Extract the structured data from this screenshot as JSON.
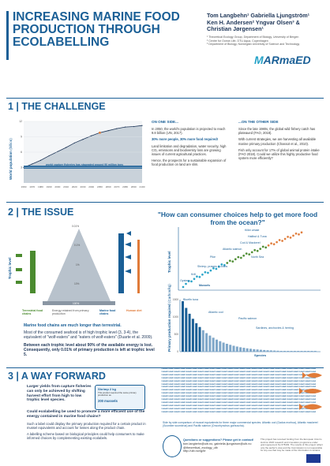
{
  "header": {
    "title_lines": [
      "INCREASING MARINE FOOD",
      "PRODUCTION THROUGH",
      "ECOLABELLING"
    ],
    "authors": [
      "Tom Langbehn",
      "Gabriella Ljungström",
      "Ken H. Andersen",
      "Yngvar Olsen",
      "Christian Jørgensen"
    ],
    "authors_line1": "Tom Langbehn¹ Gabriella Ljungström¹",
    "authors_line2": "Ken H. Andersen² Yngvar Olsen³ &",
    "authors_line3": "Christian Jørgensen¹",
    "affil1": "¹ Theoretical Ecology Group, Department of Biology, University of Bergen",
    "affil2": "² Centre for Ocean Life, DTU Aqua, Copenhagen",
    "affil3": "³ Department of Biology, Norwegian University of Science and Technology",
    "logo_a": "M",
    "logo_b": "ARmaED"
  },
  "section1": {
    "title": "1 | THE CHALLENGE",
    "chart_ylabel": "World population",
    "chart_yunit": "(billion)",
    "chart_note": "world capture fisheries has stagnated around 90 million tons",
    "left_head": "ON ONE SIDE...",
    "right_head": "...ON THE OTHER SIDE",
    "left_paras": [
      "In 2050, the world's population is projected to reach 9.8 billion (UN, 2017).",
      "30% more people, 30% more food required!",
      "Land limitation and degradation, water security, high CO₂ emissions and biodiversity loss are growing issues of current agricultural practices.",
      "Hence, the prospects for a sustainable expansion of food production on land are slim."
    ],
    "right_paras": [
      "Since the late 1980s, the global wild fishery catch has plateaued (FAO, 2018).",
      "With current strategies, we are harvesting all available marine primary production (Chassot et al., 2010).",
      "Fish only account for 17% of global animal protein intake (FAO 2018). Could we utilize this highly productive food system more efficiently?"
    ]
  },
  "chart_data": {
    "type": "area",
    "x": [
      1960,
      1970,
      1980,
      1990,
      2000,
      2010,
      2020,
      2030,
      2040,
      2050,
      2060,
      2070,
      2080,
      2090,
      2100
    ],
    "values": [
      3.0,
      3.7,
      4.4,
      5.3,
      6.1,
      6.9,
      7.8,
      8.5,
      9.2,
      9.8,
      10.2,
      10.6,
      10.9,
      11.0,
      11.2
    ],
    "xlabel": "",
    "ylabel": "World population (billion)",
    "ylim": [
      0,
      12
    ],
    "yticks": [
      "12",
      "9",
      "6",
      "3"
    ],
    "xticks": [
      "1960",
      "1970",
      "1980",
      "1990",
      "2000",
      "2010",
      "2020",
      "2030",
      "2040",
      "2050",
      "2060",
      "2070",
      "2080",
      "2090",
      "2100"
    ]
  },
  "section2": {
    "title": "2 | THE ISSUE",
    "quote": "\"How can consumer choices help to get more food from the ocean?\"",
    "pyramid_ylabel": "Trophic level",
    "pyramid_pcts": [
      "0.01%",
      "0.1%",
      "1%",
      "10%",
      "100%"
    ],
    "pyramid_legend": [
      "Terrestrial food chains",
      "Energy retained from primary production",
      "Marine food chains",
      "Human diet"
    ],
    "scatter_ylabel": "Trophic level",
    "species_labels": [
      "Killer whale",
      "Halibut & Tuna",
      "Cod & Mackerel",
      "Atlantic salmon",
      "Pike",
      "North Sea",
      "Shrimp, prawns & crabs",
      "Krill",
      "Oysters",
      "Mussels"
    ],
    "bar_ylabel": "Primary production required",
    "bar_yunit": "(Carbon/kg)",
    "bar_xlabel": "Species",
    "bar_yticks": [
      "1500",
      "1000",
      "500",
      "0"
    ],
    "bar_notes": [
      "Bluefin tuna",
      "Atlantic cod",
      "Pacific salmon",
      "Sardines, anchovies & herring"
    ],
    "paras": [
      "Marine food chains are much longer than terrestrial.",
      "Most of the consumed seafood is of high trophic level (3, 3-4), the equivalent of \"wolf-eaters\" and \"eaters of wolf-eaters\" (Duarte et al. 2009).",
      "Between each trophic level about 90% of the available energy is lost. Consequently, only 0.01% of primary production is left at trophic level 5."
    ]
  },
  "section3": {
    "title": "3 | A WAY FORWARD",
    "paras": [
      "Larger yields from capture fisheries can only be achieved by shifting harvest effort from high to low trophic level species.",
      "Could ecolabelling be used to promote a more efficient use of the energy contained in marine food chains?",
      "Such a label could display the primary production required for a certain product in mussel equivalents and account for losses along the product chain.",
      "A labelling scheme based on biological principles could help consumers to make informed choices by complementing existing ecolabels."
    ],
    "label_title": "Shrimp 2 kg",
    "label_sub": "This product required the same primary production as",
    "label_count": "200 mussels",
    "caption": "Side by side comparison of mussel equivalents for three major commercial species. Atlantic cod (Gadus morhua), Atlantic mackerel (Scomber scombrus) and Pacific salmon (Oncorhynchus gorbuscha).",
    "mussel_text": "mussel mussel mussel mussel mussel mussel mussel mussel mussel mussel mussel mussel mussel mussel mussel mussel mussel mussel mussel mussel mussel mussel mussel mussel mussel mussel"
  },
  "footer": {
    "question": "Questions or suggestions? Please get in contact!",
    "email": "tom.langbehn@uib.no, gabriella.ljungstrom@uib.no",
    "handle": "@theoretical_ecology_uib",
    "site": "http://uib.no/rg/te",
    "funding": "This project has received funding from the European Union's Horizon 2020 research and innovation programme under grant agreement No 678193. The results of this project reflect only the author's view and the Commission is not responsible for any use that may be made of the information it contains."
  },
  "colors": {
    "primary": "#1a5f96",
    "accent": "#27a3c8",
    "green": "#4b8b2f",
    "orange": "#e07b39"
  }
}
